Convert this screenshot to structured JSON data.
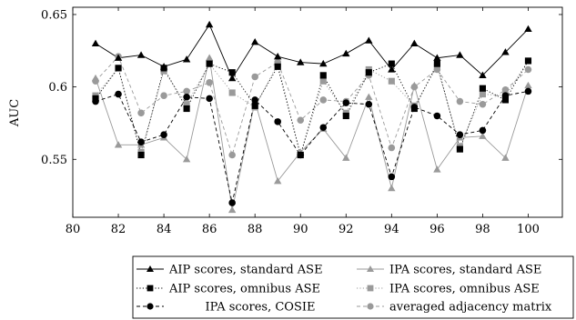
{
  "chart_data": {
    "type": "line",
    "title": "",
    "xlabel": "",
    "ylabel": "AUC",
    "xlim": [
      80,
      101.5
    ],
    "ylim": [
      0.51,
      0.655
    ],
    "xticks": [
      80,
      82,
      84,
      86,
      88,
      90,
      92,
      94,
      96,
      98,
      100
    ],
    "yticks": [
      0.55,
      0.6,
      0.65
    ],
    "ytick_labels": [
      "0.55",
      "0.6",
      "0.65"
    ],
    "grid": false,
    "legend_placement": "below",
    "x": [
      81,
      82,
      83,
      84,
      85,
      86,
      87,
      88,
      89,
      90,
      91,
      92,
      93,
      94,
      95,
      96,
      97,
      98,
      99,
      100
    ],
    "series": [
      {
        "name": "AIP scores, standard ASE",
        "color": "#000000",
        "dash": "solid",
        "marker": "triangle",
        "values": [
          0.63,
          0.62,
          0.622,
          0.614,
          0.619,
          0.643,
          0.606,
          0.631,
          0.621,
          0.617,
          0.616,
          0.623,
          0.632,
          0.612,
          0.63,
          0.62,
          0.622,
          0.608,
          0.624,
          0.64
        ]
      },
      {
        "name": "IPA scores, standard ASE",
        "color": "#9a9a9a",
        "dash": "solid",
        "marker": "triangle",
        "values": [
          0.606,
          0.56,
          0.56,
          0.565,
          0.55,
          0.62,
          0.515,
          0.59,
          0.535,
          0.555,
          0.571,
          0.551,
          0.593,
          0.53,
          0.601,
          0.543,
          0.565,
          0.566,
          0.551,
          0.601
        ]
      },
      {
        "name": "AIP scores, omnibus ASE",
        "color": "#000000",
        "dash": "dotted",
        "marker": "square",
        "values": [
          0.592,
          0.613,
          0.553,
          0.613,
          0.585,
          0.616,
          0.61,
          0.587,
          0.614,
          0.553,
          0.608,
          0.58,
          0.61,
          0.616,
          0.585,
          0.616,
          0.557,
          0.599,
          0.591,
          0.618
        ]
      },
      {
        "name": "IPA scores, omnibus ASE",
        "color": "#9a9a9a",
        "dash": "dotted",
        "marker": "square",
        "values": [
          0.594,
          0.613,
          0.555,
          0.611,
          0.588,
          0.616,
          0.596,
          0.586,
          0.616,
          0.553,
          0.604,
          0.582,
          0.612,
          0.604,
          0.587,
          0.614,
          0.559,
          0.595,
          0.594,
          0.618
        ]
      },
      {
        "name": "IPA scores, COSIE",
        "color": "#000000",
        "dash": "dashed",
        "marker": "circle",
        "values": [
          0.59,
          0.595,
          0.562,
          0.567,
          0.593,
          0.592,
          0.52,
          0.591,
          0.576,
          0.553,
          0.572,
          0.589,
          0.588,
          0.538,
          0.586,
          0.58,
          0.567,
          0.57,
          0.594,
          0.597
        ]
      },
      {
        "name": "averaged adjacency matrix",
        "color": "#9a9a9a",
        "dash": "dashed",
        "marker": "circle",
        "values": [
          0.604,
          0.621,
          0.582,
          0.594,
          0.597,
          0.603,
          0.553,
          0.607,
          0.617,
          0.577,
          0.591,
          0.59,
          0.608,
          0.558,
          0.6,
          0.612,
          0.59,
          0.588,
          0.598,
          0.612
        ]
      }
    ]
  }
}
